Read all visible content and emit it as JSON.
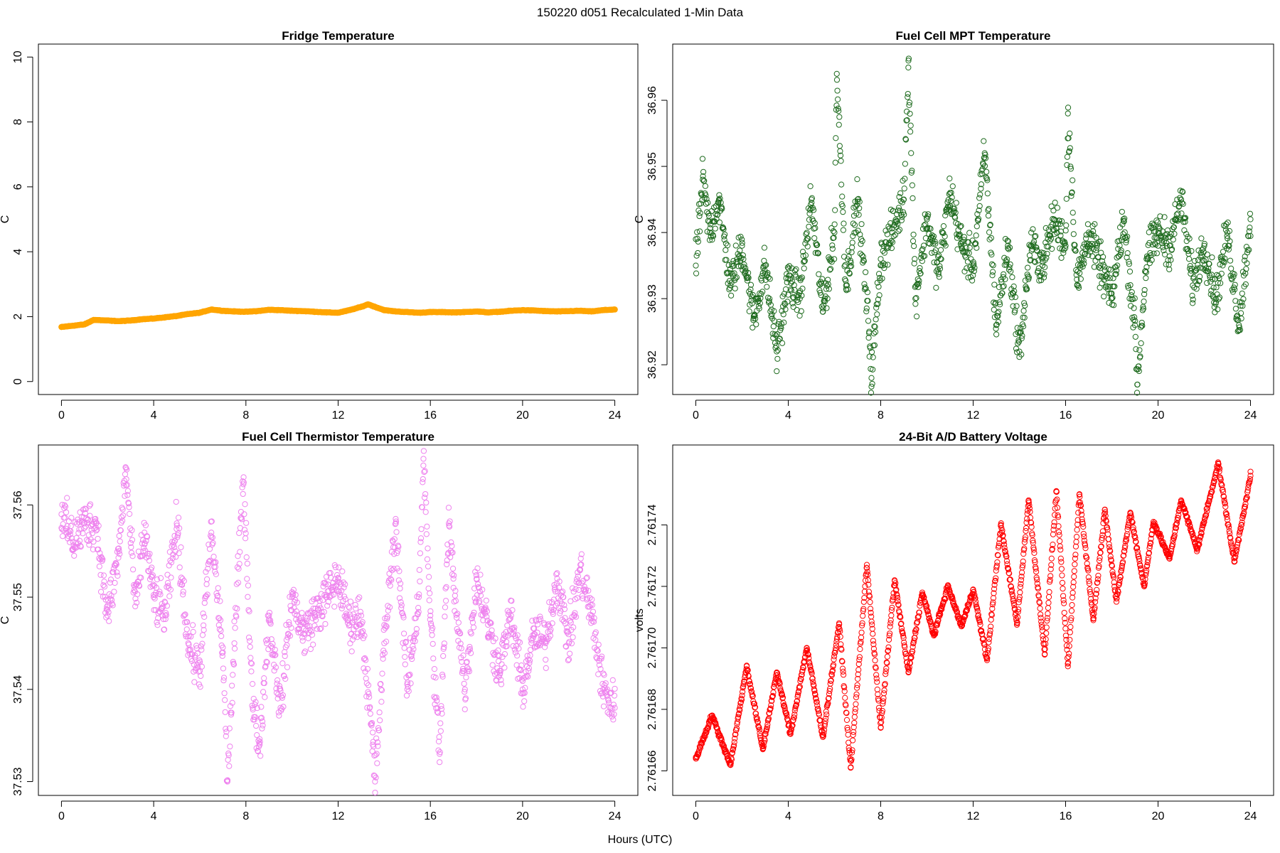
{
  "figure": {
    "title": "150220   d051   Recalculated 1-Min Data",
    "xlabel": "Hours (UTC)"
  },
  "chart_data": [
    {
      "type": "scatter",
      "title": "Fridge Temperature",
      "xlabel": "",
      "ylabel": "C",
      "xlim": [
        -1,
        25
      ],
      "ylim": [
        -0.4,
        10.4
      ],
      "xticks": [
        0,
        4,
        8,
        12,
        16,
        20,
        24
      ],
      "xtick_labels": [
        "0",
        "4",
        "8",
        "12",
        "16",
        "20",
        "24"
      ],
      "yticks": [
        0,
        2,
        4,
        6,
        8,
        10
      ],
      "ytick_labels": [
        "0",
        "2",
        "4",
        "6",
        "8",
        "10"
      ],
      "color": "#FFA500",
      "marker": "filled",
      "series": [
        {
          "name": "Fridge Temperature",
          "x": [
            0,
            0.5,
            1,
            1.4,
            2,
            2.5,
            3,
            3.5,
            4,
            4.5,
            5,
            5.5,
            6,
            6.5,
            7,
            7.5,
            8,
            8.5,
            9,
            9.5,
            10,
            10.5,
            11,
            11.5,
            12,
            12.5,
            13,
            13.3,
            13.6,
            14,
            14.5,
            15,
            15.5,
            16,
            16.5,
            17,
            17.5,
            18,
            18.5,
            19,
            19.5,
            20,
            20.5,
            21,
            21.5,
            22,
            22.5,
            23,
            23.5,
            24
          ],
          "y": [
            1.68,
            1.72,
            1.76,
            1.9,
            1.88,
            1.86,
            1.88,
            1.92,
            1.94,
            1.98,
            2.02,
            2.08,
            2.12,
            2.22,
            2.18,
            2.16,
            2.15,
            2.17,
            2.21,
            2.2,
            2.18,
            2.17,
            2.15,
            2.13,
            2.12,
            2.2,
            2.3,
            2.38,
            2.3,
            2.2,
            2.16,
            2.14,
            2.12,
            2.14,
            2.14,
            2.13,
            2.14,
            2.16,
            2.13,
            2.15,
            2.18,
            2.2,
            2.19,
            2.17,
            2.16,
            2.17,
            2.18,
            2.16,
            2.2,
            2.22
          ]
        }
      ]
    },
    {
      "type": "scatter",
      "title": "Fuel Cell MPT Temperature",
      "xlabel": "",
      "ylabel": "C",
      "xlim": [
        -1,
        25
      ],
      "ylim": [
        36.9155,
        36.9685
      ],
      "xticks": [
        0,
        4,
        8,
        12,
        16,
        20,
        24
      ],
      "xtick_labels": [
        "0",
        "4",
        "8",
        "12",
        "16",
        "20",
        "24"
      ],
      "yticks": [
        36.92,
        36.93,
        36.94,
        36.95,
        36.96
      ],
      "ytick_labels": [
        "36.92",
        "36.93",
        "36.94",
        "36.95",
        "36.96"
      ],
      "color": "#1E6B1E",
      "marker": "open-circle",
      "series": [
        {
          "name": "Fuel Cell MPT Temperature",
          "x": [
            0,
            0.3,
            0.6,
            1,
            1.5,
            2,
            2.5,
            3,
            3.5,
            4,
            4.5,
            5,
            5.5,
            6,
            6.1,
            6.5,
            7,
            7.5,
            7.6,
            8,
            8.5,
            9,
            9.2,
            9.5,
            10,
            10.5,
            11,
            11.5,
            12,
            12.5,
            13,
            13.5,
            14,
            14.5,
            15,
            15.5,
            16,
            16.1,
            16.5,
            17,
            17.5,
            18,
            18.5,
            19,
            19.1,
            19.5,
            20,
            20.5,
            21,
            21.5,
            22,
            22.5,
            23,
            23.5,
            24
          ],
          "y": [
            36.935,
            36.948,
            36.94,
            36.945,
            36.932,
            36.938,
            36.927,
            36.935,
            36.922,
            36.933,
            36.93,
            36.945,
            36.928,
            36.94,
            36.964,
            36.932,
            36.945,
            36.925,
            36.918,
            36.936,
            36.94,
            36.945,
            36.966,
            36.93,
            36.942,
            36.934,
            36.946,
            36.938,
            36.935,
            36.952,
            36.926,
            36.938,
            36.922,
            36.938,
            36.935,
            36.942,
            36.938,
            36.958,
            36.932,
            36.94,
            36.935,
            36.93,
            36.942,
            36.926,
            36.917,
            36.936,
            36.94,
            36.938,
            36.945,
            36.932,
            36.938,
            36.93,
            36.94,
            36.926,
            36.942
          ]
        }
      ]
    },
    {
      "type": "scatter",
      "title": "Fuel Cell Thermistor Temperature",
      "xlabel": "Hours (UTC)",
      "ylabel": "C",
      "xlim": [
        -1,
        25
      ],
      "ylim": [
        37.5285,
        37.5665
      ],
      "xticks": [
        0,
        4,
        8,
        12,
        16,
        20,
        24
      ],
      "xtick_labels": [
        "0",
        "4",
        "8",
        "12",
        "16",
        "20",
        "24"
      ],
      "yticks": [
        37.53,
        37.54,
        37.55,
        37.56
      ],
      "ytick_labels": [
        "37.53",
        "37.54",
        "37.55",
        "37.56"
      ],
      "color": "#EE82EE",
      "marker": "open-circle",
      "series": [
        {
          "name": "Fuel Cell Thermistor Temperature",
          "x": [
            0,
            0.5,
            1,
            1.5,
            2,
            2.5,
            2.8,
            3.2,
            3.6,
            4,
            4.5,
            5,
            5.5,
            6,
            6.5,
            7,
            7.2,
            7.5,
            7.9,
            8.3,
            8.6,
            9,
            9.5,
            10,
            10.5,
            11,
            11.5,
            12,
            12.5,
            13,
            13.5,
            13.6,
            14,
            14.5,
            15,
            15.5,
            15.7,
            16,
            16.4,
            16.8,
            17,
            17.5,
            18,
            18.5,
            19,
            19.5,
            20,
            20.5,
            21,
            21.5,
            22,
            22.5,
            23,
            23.5,
            24
          ],
          "y": [
            37.559,
            37.556,
            37.558,
            37.558,
            37.548,
            37.555,
            37.564,
            37.549,
            37.557,
            37.55,
            37.548,
            37.558,
            37.545,
            37.542,
            37.557,
            37.544,
            37.53,
            37.545,
            37.563,
            37.538,
            37.534,
            37.548,
            37.538,
            37.55,
            37.546,
            37.548,
            37.55,
            37.552,
            37.547,
            37.548,
            37.534,
            37.53,
            37.545,
            37.558,
            37.54,
            37.55,
            37.565,
            37.548,
            37.533,
            37.558,
            37.552,
            37.54,
            37.552,
            37.547,
            37.542,
            37.548,
            37.54,
            37.546,
            37.545,
            37.552,
            37.545,
            37.553,
            37.548,
            37.54,
            37.538
          ]
        }
      ]
    },
    {
      "type": "scatter",
      "title": "24-Bit A/D Battery Voltage",
      "xlabel": "Hours (UTC)",
      "ylabel": "volts",
      "xlim": [
        -1,
        25
      ],
      "ylim": [
        2.761652,
        2.761766
      ],
      "xticks": [
        0,
        4,
        8,
        12,
        16,
        20,
        24
      ],
      "xtick_labels": [
        "0",
        "4",
        "8",
        "12",
        "16",
        "20",
        "24"
      ],
      "yticks": [
        2.76166,
        2.76168,
        2.7617,
        2.76172,
        2.76174
      ],
      "ytick_labels": [
        "2.76166",
        "2.76168",
        "2.76170",
        "2.76172",
        "2.76174"
      ],
      "color": "#FF0000",
      "marker": "open-circle",
      "series": [
        {
          "name": "24-Bit A/D Battery Voltage",
          "x": [
            0,
            0.7,
            1,
            1.5,
            2.2,
            2.9,
            3.5,
            4.1,
            4.8,
            5.5,
            6.2,
            6.7,
            7.4,
            8.0,
            8.6,
            9.2,
            9.8,
            10.3,
            10.9,
            11.5,
            12.0,
            12.6,
            13.2,
            13.9,
            14.4,
            15.1,
            15.6,
            16.1,
            16.6,
            17.2,
            17.7,
            18.2,
            18.8,
            19.4,
            19.8,
            20.5,
            21.0,
            21.7,
            22.6,
            23.3,
            24.0
          ],
          "y": [
            2.761664,
            2.761678,
            2.761672,
            2.761662,
            2.761694,
            2.761667,
            2.761692,
            2.761672,
            2.7617,
            2.761671,
            2.761708,
            2.761661,
            2.761727,
            2.761674,
            2.761722,
            2.761692,
            2.761718,
            2.761704,
            2.76172,
            2.761707,
            2.761719,
            2.761696,
            2.76174,
            2.761708,
            2.761748,
            2.761698,
            2.761751,
            2.761694,
            2.76175,
            2.761709,
            2.761745,
            2.761715,
            2.761744,
            2.76172,
            2.761741,
            2.761729,
            2.761748,
            2.761732,
            2.76176,
            2.761728,
            2.761756
          ]
        }
      ]
    }
  ]
}
